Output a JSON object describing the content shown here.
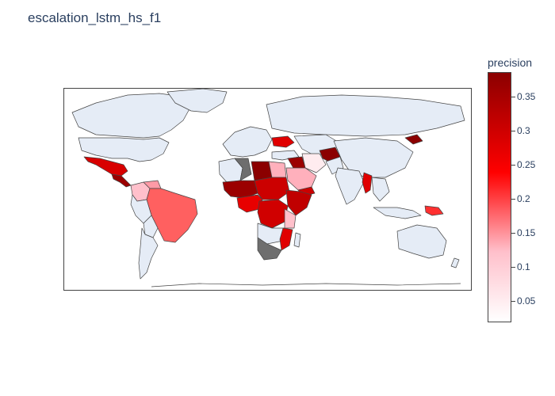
{
  "title": "escalation_lstm_hs_f1",
  "colorbar": {
    "title": "precision",
    "min": 0.02,
    "max": 0.385,
    "ticks": [
      {
        "value": 0.35,
        "label": "0.35"
      },
      {
        "value": 0.3,
        "label": "0.3"
      },
      {
        "value": 0.25,
        "label": "0.25"
      },
      {
        "value": 0.2,
        "label": "0.2"
      },
      {
        "value": 0.15,
        "label": "0.15"
      },
      {
        "value": 0.1,
        "label": "0.1"
      },
      {
        "value": 0.05,
        "label": "0.05"
      }
    ],
    "stops": [
      {
        "offset": 0,
        "color": "#ffffff"
      },
      {
        "offset": 0.28,
        "color": "#ffc0cb"
      },
      {
        "offset": 0.6,
        "color": "#ff0000"
      },
      {
        "offset": 1,
        "color": "#8b0000"
      }
    ]
  },
  "colors": {
    "no_data": "#e5ecf6",
    "missing": "#6e6e6e",
    "border": "#444444"
  },
  "chart_data": {
    "type": "choropleth",
    "title": "escalation_lstm_hs_f1",
    "colorbar_title": "precision",
    "color_range": [
      0.02,
      0.385
    ]
  }
}
